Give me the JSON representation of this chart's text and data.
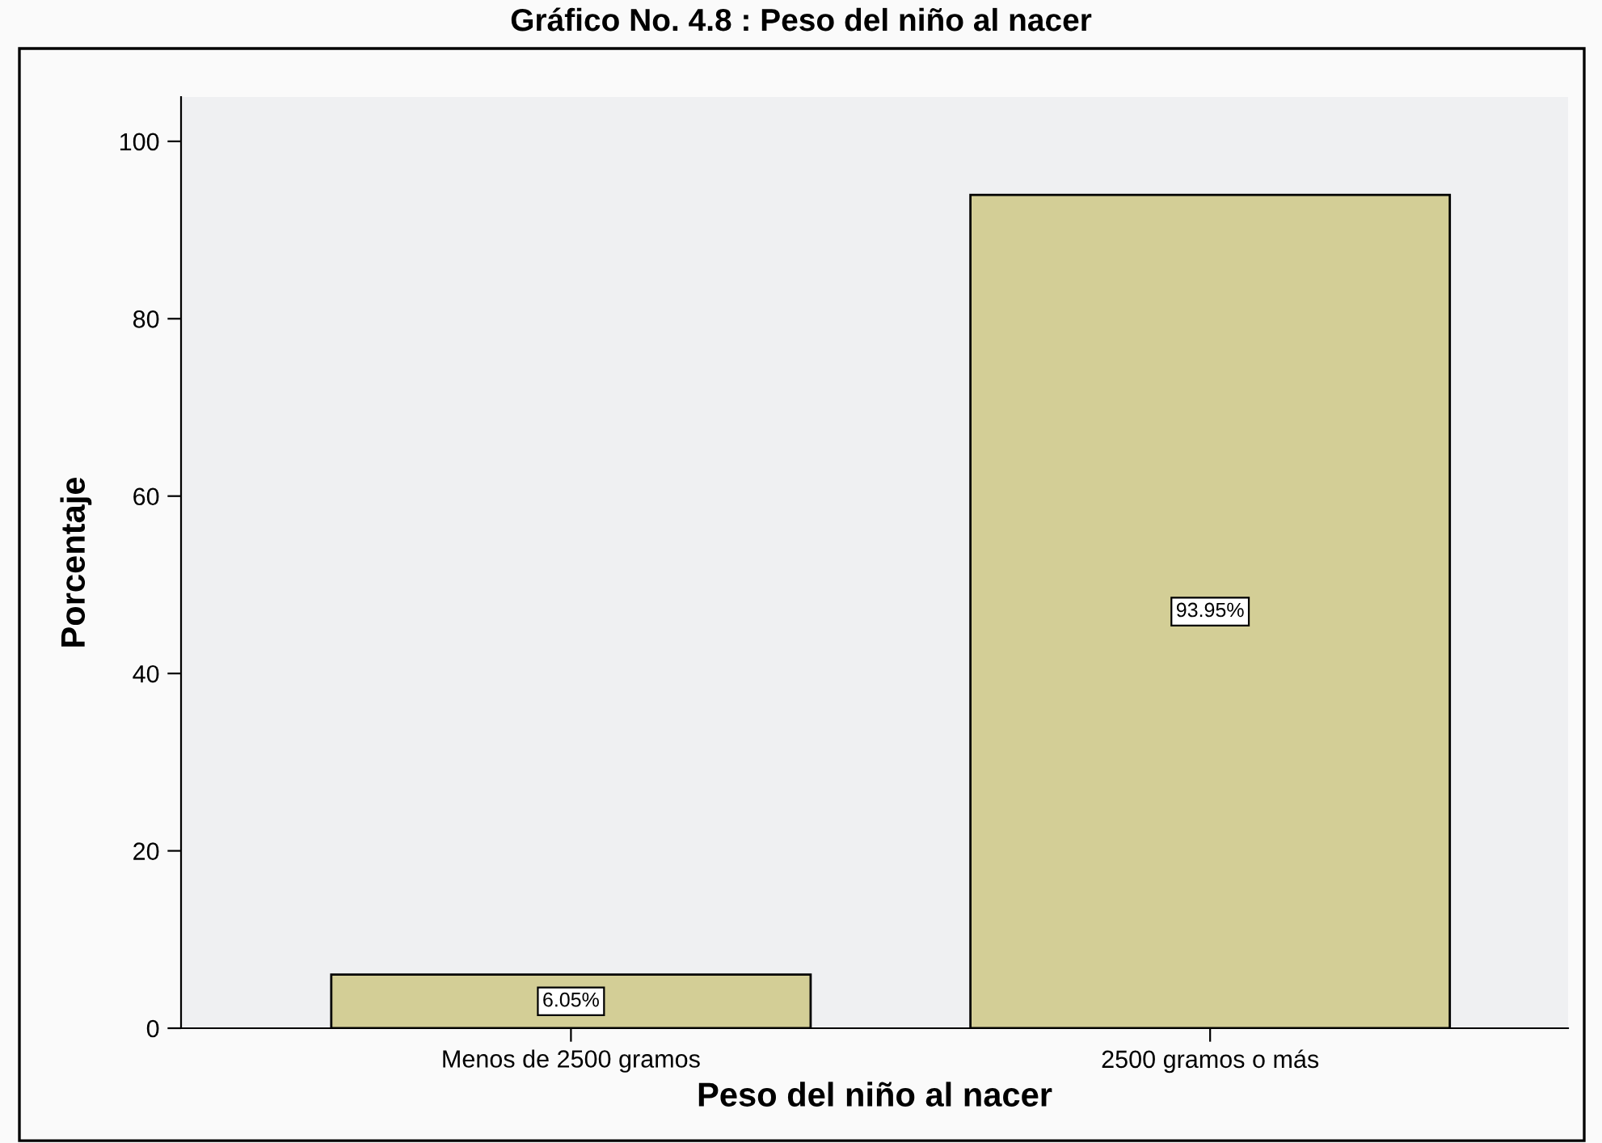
{
  "chart_data": {
    "type": "bar",
    "title": "Gráfico No. 4.8 : Peso del niño al nacer",
    "xlabel": "Peso del niño al nacer",
    "ylabel": "Porcentaje",
    "categories": [
      "Menos de 2500 gramos",
      "2500 gramos o más"
    ],
    "values": [
      6.05,
      93.95
    ],
    "value_labels": [
      "6.05%",
      "93.95%"
    ],
    "color": "#d3ce96",
    "ylim": [
      0,
      105
    ],
    "yticks": [
      0,
      20,
      40,
      60,
      80,
      100
    ],
    "grid": false
  }
}
